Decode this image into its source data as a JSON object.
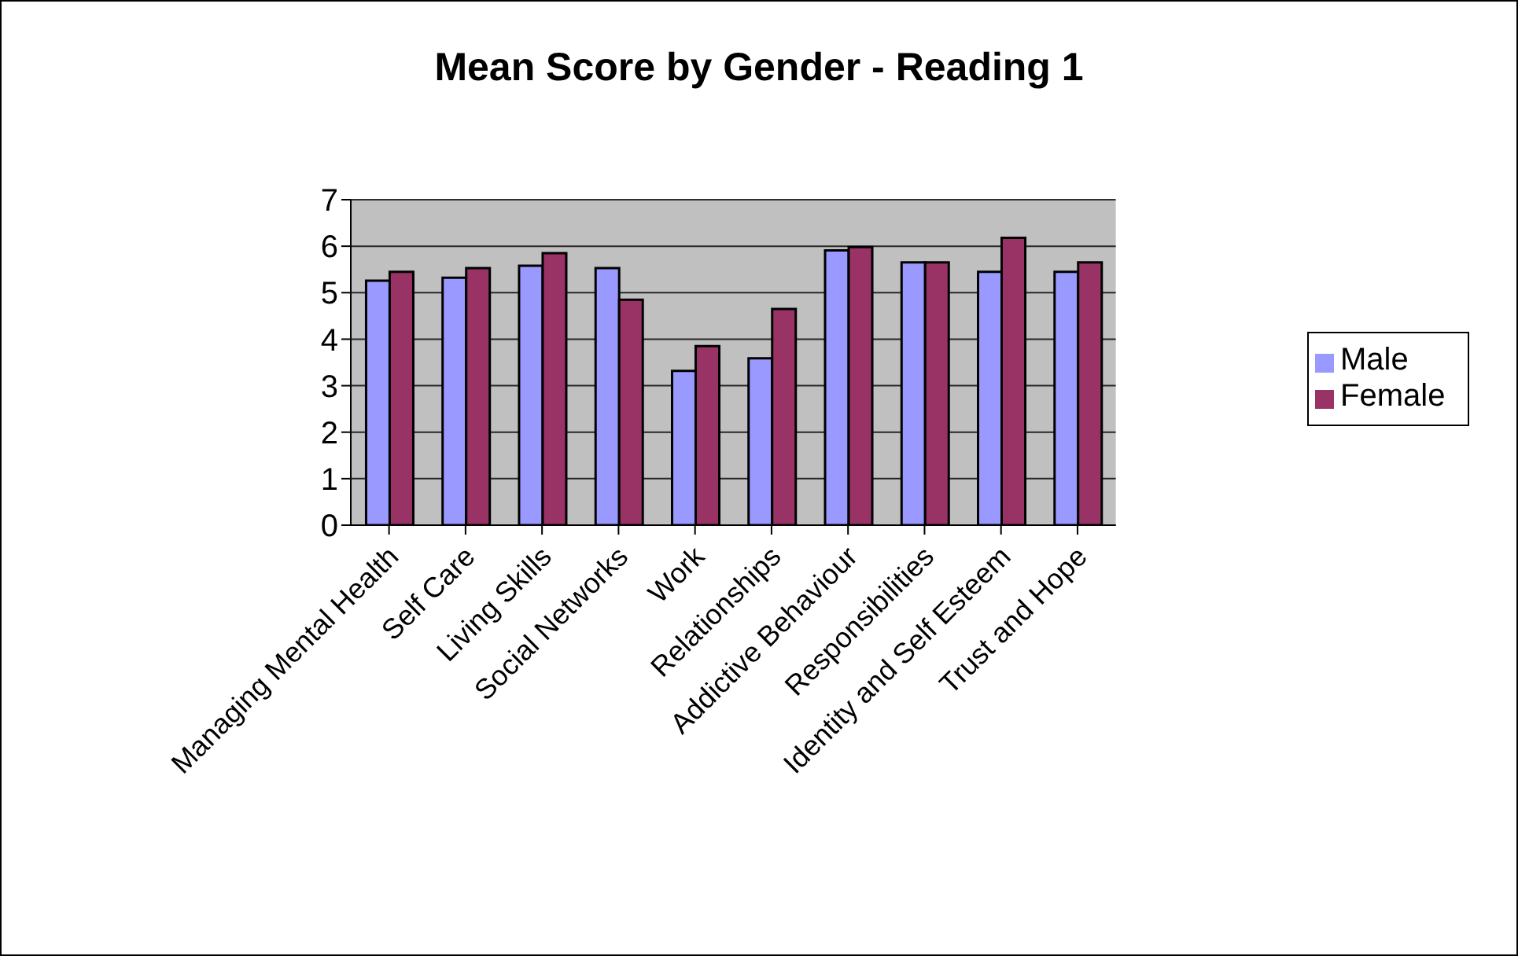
{
  "chart_data": {
    "type": "bar",
    "title": "Mean Score by Gender - Reading 1",
    "categories": [
      "Managing Mental Health",
      "Self Care",
      "Living Skills",
      "Social Networks",
      "Work",
      "Relationships",
      "Addictive Behaviour",
      "Responsibilities",
      "Identity and Self Esteem",
      "Trust and Hope"
    ],
    "series": [
      {
        "name": "Male",
        "color": "#9999ff",
        "values": [
          5.26,
          5.32,
          5.58,
          5.53,
          3.32,
          3.59,
          5.91,
          5.65,
          5.45,
          5.45
        ]
      },
      {
        "name": "Female",
        "color": "#993366",
        "values": [
          5.45,
          5.53,
          5.85,
          4.85,
          3.85,
          4.65,
          5.98,
          5.65,
          6.18,
          5.65
        ]
      }
    ],
    "ylim": [
      0,
      7
    ],
    "yticks": [
      0,
      1,
      2,
      3,
      4,
      5,
      6,
      7
    ],
    "grid": "y",
    "legend": "right"
  }
}
